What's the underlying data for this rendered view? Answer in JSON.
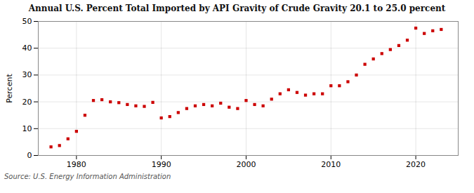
{
  "chart_data": {
    "type": "scatter",
    "title": "Annual U.S. Percent Total Imported by API Gravity of Crude Gravity 20.1 to 25.0 percent",
    "ylabel": "Percent",
    "source": "Source: U.S. Energy Information Administration",
    "x": [
      1977,
      1978,
      1979,
      1980,
      1981,
      1982,
      1983,
      1984,
      1985,
      1986,
      1987,
      1988,
      1989,
      1990,
      1991,
      1992,
      1993,
      1994,
      1995,
      1996,
      1997,
      1998,
      1999,
      2000,
      2001,
      2002,
      2003,
      2004,
      2005,
      2006,
      2007,
      2008,
      2009,
      2010,
      2011,
      2012,
      2013,
      2014,
      2015,
      2016,
      2017,
      2018,
      2019,
      2020,
      2021,
      2022,
      2023
    ],
    "values": [
      3.2,
      3.7,
      6.2,
      9.0,
      15.0,
      20.5,
      20.8,
      20.0,
      19.7,
      19.0,
      18.5,
      18.3,
      19.8,
      14.0,
      14.5,
      16.0,
      17.5,
      18.5,
      19.0,
      18.5,
      19.5,
      18.0,
      17.5,
      20.5,
      19.0,
      18.5,
      21.0,
      23.0,
      24.5,
      23.5,
      22.5,
      23.0,
      23.0,
      26.0,
      26.0,
      27.5,
      30.0,
      34.0,
      36.0,
      38.0,
      39.5,
      41.0,
      43.0,
      47.5,
      45.5,
      46.5,
      47.0
    ],
    "color": "#cc0000",
    "marker": "square",
    "xlim": [
      1975.5,
      2025
    ],
    "xticks": [
      1980,
      1990,
      2000,
      2010,
      2020
    ],
    "ylim": [
      0,
      50
    ],
    "yticks": [
      0,
      10,
      20,
      30,
      40,
      50
    ],
    "grid": true
  }
}
